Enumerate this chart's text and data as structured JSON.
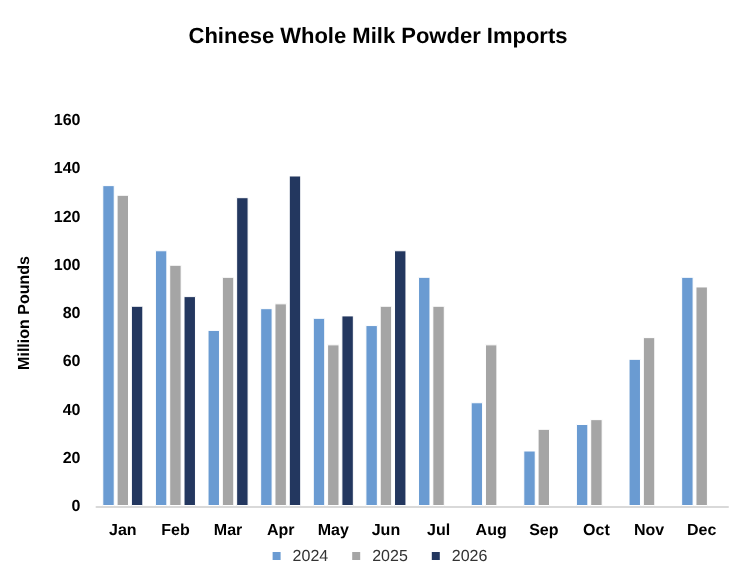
{
  "chart_data": {
    "type": "bar",
    "title": "Chinese Whole Milk Powder Imports",
    "ylabel": "Million Pounds",
    "categories": [
      "Jan",
      "Feb",
      "Mar",
      "Apr",
      "May",
      "Jun",
      "Jul",
      "Aug",
      "Sep",
      "Oct",
      "Nov",
      "Dec"
    ],
    "series": [
      {
        "name": "2024",
        "color": "#6a9bd2",
        "values": [
          133,
          106,
          73,
          82,
          78,
          75,
          95,
          43,
          23,
          34,
          61,
          95
        ]
      },
      {
        "name": "2025",
        "color": "#a5a5a5",
        "values": [
          129,
          100,
          95,
          84,
          67,
          83,
          83,
          67,
          32,
          36,
          70,
          91
        ]
      },
      {
        "name": "2026",
        "color": "#23375f",
        "values": [
          83,
          87,
          128,
          137,
          79,
          106,
          null,
          null,
          null,
          null,
          null,
          null
        ]
      }
    ],
    "ylim": [
      0,
      160
    ],
    "yticks": [
      0,
      20,
      40,
      60,
      80,
      100,
      120,
      140,
      160
    ],
    "grid": false,
    "legend": "bottom"
  }
}
